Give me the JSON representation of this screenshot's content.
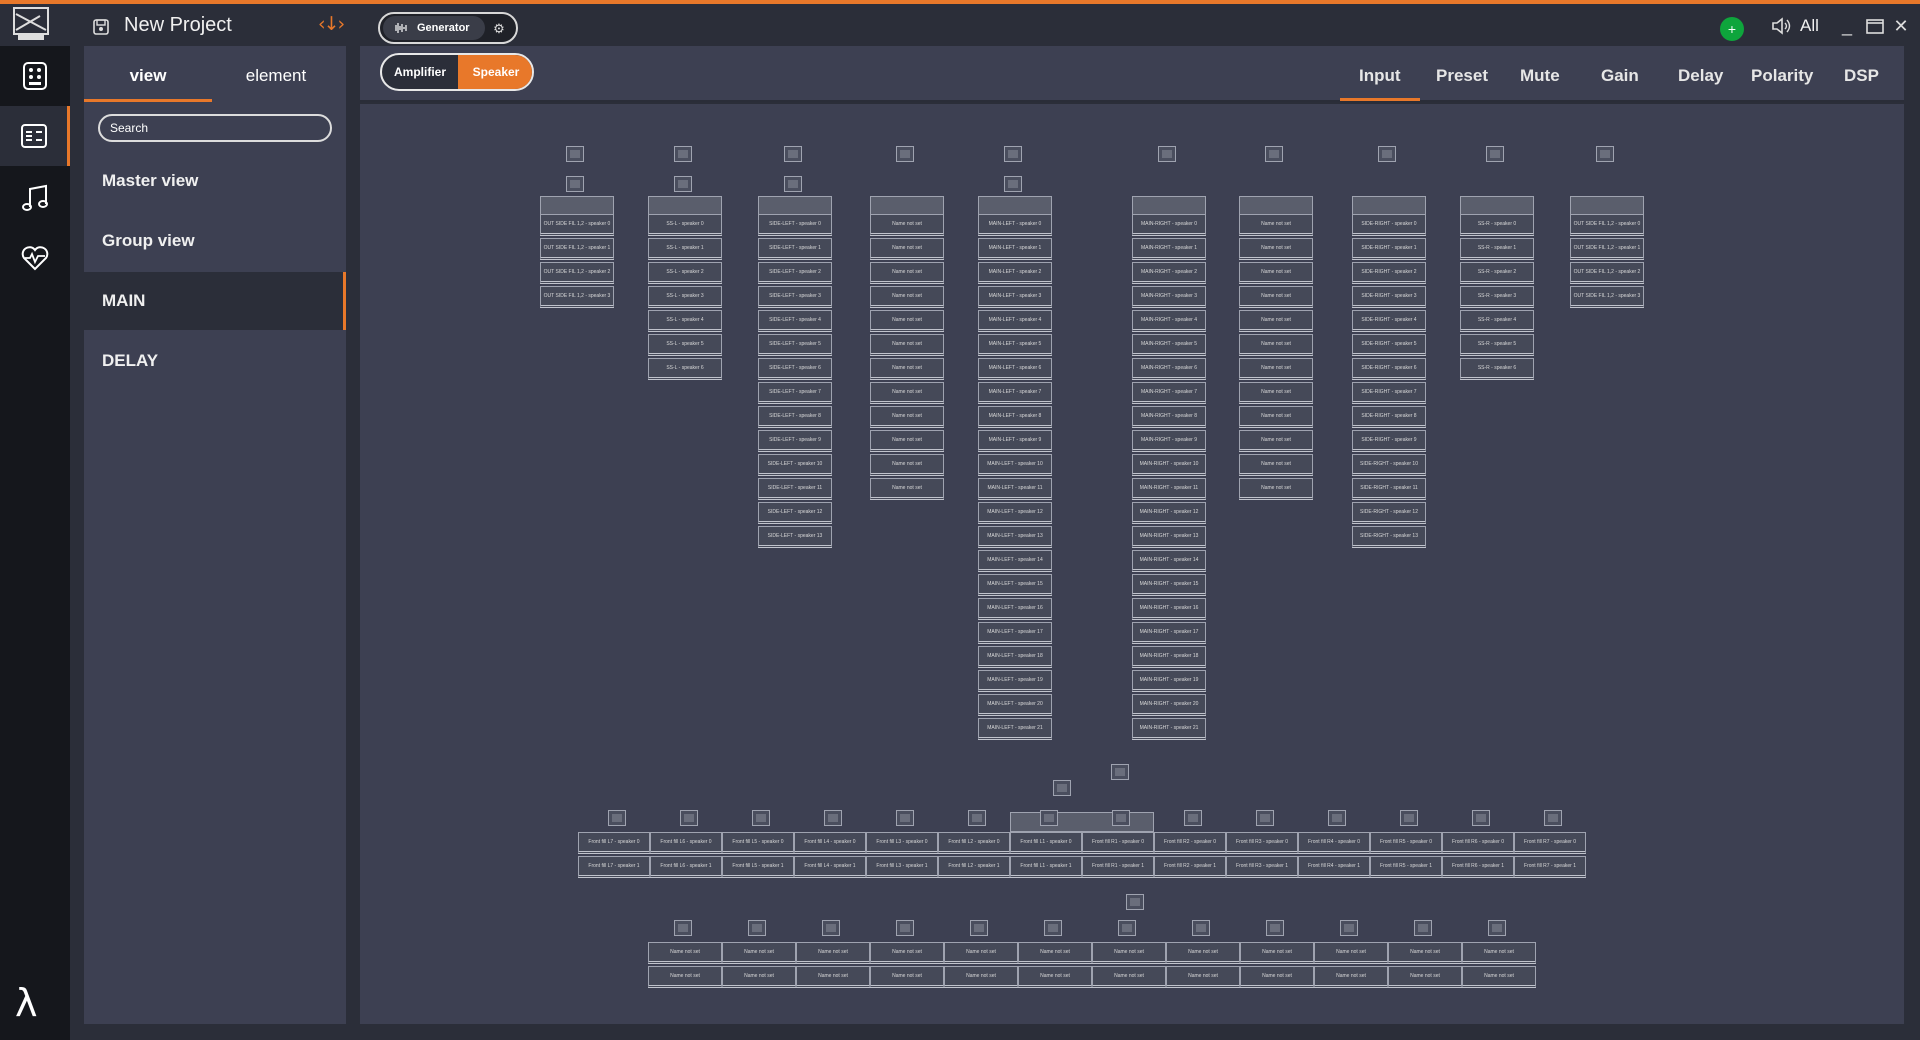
{
  "app": {
    "project_title": "New Project",
    "generator_label": "Generator",
    "volume_label": "All",
    "accent_color": "#e8782a",
    "status_color": "#0ea53c"
  },
  "rail": {
    "items": [
      "grid-icon",
      "layout-icon",
      "music-icon",
      "heartbeat-icon"
    ],
    "bottom_icon": "lambda-icon",
    "bottom_glyph": "λ"
  },
  "side": {
    "tabs": [
      "view",
      "element"
    ],
    "search_placeholder": "Search",
    "items": [
      "Master view",
      "Group view",
      "MAIN",
      "DELAY"
    ]
  },
  "main": {
    "toggle": [
      "Amplifier",
      "Speaker"
    ],
    "tabs": [
      "Input",
      "Preset",
      "Mute",
      "Gain",
      "Delay",
      "Polarity",
      "DSP"
    ]
  },
  "arrays": [
    {
      "prefix": "OUT SIDE FIL 1,2 - speaker ",
      "count": 4,
      "first": 0
    },
    {
      "prefix": "SS-L - speaker ",
      "count": 7,
      "first": 0
    },
    {
      "prefix": "SIDE-LEFT - speaker ",
      "count": 14,
      "first": 0
    },
    {
      "prefix": "Name not set",
      "count": 12,
      "first": null
    },
    {
      "prefix": "MAIN-LEFT - speaker ",
      "count": 22,
      "first": 0
    },
    {
      "prefix": "MAIN-RIGHT - speaker ",
      "count": 22,
      "first": 0
    },
    {
      "prefix": "Name not set",
      "count": 12,
      "first": null
    },
    {
      "prefix": "SIDE-RIGHT - speaker ",
      "count": 14,
      "first": 0
    },
    {
      "prefix": "SS-R - speaker ",
      "count": 7,
      "first": 0
    },
    {
      "prefix": "OUT SIDE FIL 1,2 - speaker ",
      "count": 4,
      "first": 0
    }
  ],
  "front_fill": [
    "Front fill L7",
    "Front fill L6",
    "Front fill L5",
    "Front fill L4",
    "Front fill L3",
    "Front fill L2",
    "Front fill L1",
    "Front fill R1",
    "Front fill R2",
    "Front fill R3",
    "Front fill R4",
    "Front fill R5",
    "Front fill R6",
    "Front fill R7"
  ],
  "bottom_row_label": "Name not set",
  "bottom_row_count": 12
}
